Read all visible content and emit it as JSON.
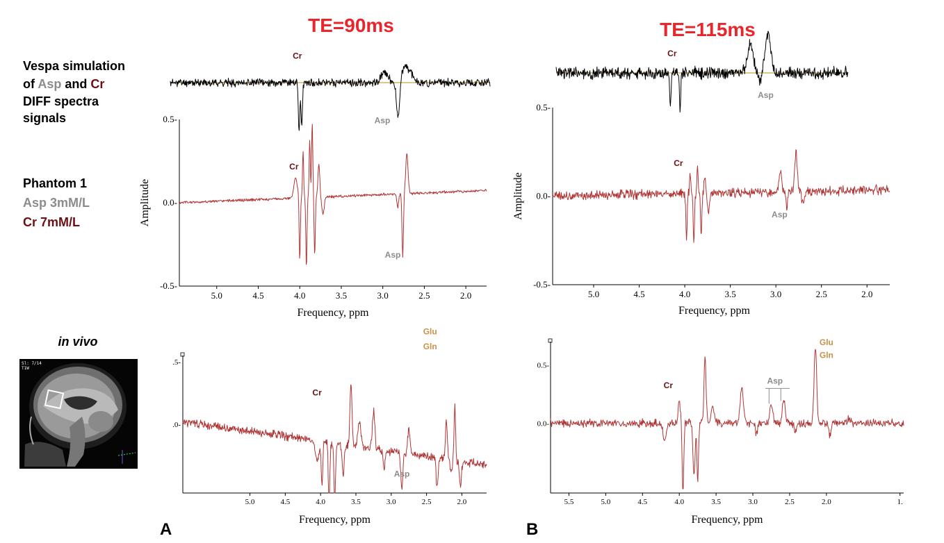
{
  "te_labels": [
    "TE=90ms",
    "TE=115ms"
  ],
  "side_labels": {
    "vespa": {
      "line1": "Vespa simulation",
      "line2_of": "of ",
      "line2_asp": "Asp",
      "line2_and": " and ",
      "line2_cr": "Cr",
      "line3": "DIFF spectra",
      "line4": "signals"
    },
    "phantom": {
      "title": "Phantom 1",
      "asp": "Asp 3mM/L",
      "cr": "Cr 7mM/L"
    },
    "in_vivo": "in vivo"
  },
  "panel_labels": [
    "A",
    "B"
  ],
  "mri": {
    "overlay_text_1": "Sl: 7/14",
    "overlay_text_2": "T1W"
  },
  "colors": {
    "title_red": "#e8262b",
    "cr_label": "#6b1014",
    "asp_label": "#8c8c8c",
    "glu_label": "#c8924a",
    "spectrum_red": "#b03535",
    "baseline": "#c8a642"
  },
  "chart_data": [
    {
      "id": "vespa-te90",
      "type": "line",
      "title": "TE=90ms",
      "description_series": "Vespa simulated DIFF spectrum (Asp and Cr)",
      "xlim": [
        5.4,
        1.75
      ],
      "ylim": [
        -1,
        1
      ],
      "baseline": 0,
      "peaks": [
        {
          "x": 3.93,
          "y": -1.0,
          "w": 0.012
        },
        {
          "x": 3.9,
          "y": -0.9,
          "w": 0.012
        },
        {
          "x": 2.8,
          "y": -0.75,
          "w": 0.025
        },
        {
          "x": 2.95,
          "y": 0.2,
          "w": 0.06
        },
        {
          "x": 2.72,
          "y": 0.35,
          "w": 0.05
        },
        {
          "x": 2.65,
          "y": 0.15,
          "w": 0.04
        }
      ],
      "noise": 0.12,
      "seed": 11,
      "annotations": [
        {
          "text": "Cr",
          "x": 3.95,
          "y": 0.5,
          "kind": "cr"
        },
        {
          "text": "Asp",
          "x": 2.98,
          "y": -0.85,
          "kind": "asp"
        }
      ]
    },
    {
      "id": "vespa-te115",
      "type": "line",
      "title": "TE=115ms",
      "description_series": "Vespa simulated DIFF spectrum (Asp and Cr)",
      "xlim": [
        5.4,
        1.75
      ],
      "ylim": [
        -1,
        1
      ],
      "baseline": 0,
      "peaks": [
        {
          "x": 3.97,
          "y": -0.8,
          "w": 0.012
        },
        {
          "x": 3.85,
          "y": -0.8,
          "w": 0.012
        },
        {
          "x": 2.97,
          "y": 0.7,
          "w": 0.05
        },
        {
          "x": 2.75,
          "y": 0.95,
          "w": 0.05
        },
        {
          "x": 2.85,
          "y": -0.3,
          "w": 0.02
        }
      ],
      "noise": 0.22,
      "seed": 23,
      "annotations": [
        {
          "text": "Cr",
          "x": 3.95,
          "y": 0.4,
          "kind": "cr"
        },
        {
          "text": "Asp",
          "x": 2.78,
          "y": -0.6,
          "kind": "asp"
        }
      ]
    },
    {
      "id": "phantom-te90",
      "type": "line",
      "title": "Phantom 1, TE=90ms",
      "xlabel": "Frequency, ppm",
      "ylabel": "Amplitude",
      "xlim": [
        5.45,
        1.75
      ],
      "ylim": [
        -0.5,
        0.5
      ],
      "xticks": [
        5.0,
        4.5,
        4.0,
        3.5,
        3.0,
        2.5,
        2.0
      ],
      "yticks": [
        0.5,
        0.0,
        -0.5
      ],
      "ytick_labels": [
        "0.5-",
        "0.0-",
        "-0.5-"
      ],
      "baseline": 0.0,
      "baseline_slope": 0.02,
      "peaks": [
        {
          "x": 4.05,
          "y": 0.12,
          "w": 0.03
        },
        {
          "x": 4.0,
          "y": -0.38,
          "w": 0.01
        },
        {
          "x": 3.96,
          "y": 0.28,
          "w": 0.01
        },
        {
          "x": 3.92,
          "y": -0.42,
          "w": 0.01
        },
        {
          "x": 3.88,
          "y": 0.35,
          "w": 0.01
        },
        {
          "x": 3.85,
          "y": 0.45,
          "w": 0.01
        },
        {
          "x": 3.82,
          "y": -0.35,
          "w": 0.01
        },
        {
          "x": 3.77,
          "y": 0.2,
          "w": 0.015
        },
        {
          "x": 3.72,
          "y": -0.1,
          "w": 0.02
        },
        {
          "x": 2.76,
          "y": -0.38,
          "w": 0.012
        },
        {
          "x": 2.71,
          "y": 0.24,
          "w": 0.02
        },
        {
          "x": 2.82,
          "y": -0.08,
          "w": 0.015
        }
      ],
      "noise": 0.012,
      "seed": 5,
      "annotations": [
        {
          "text": "Cr",
          "x": 4.07,
          "y": 0.2,
          "kind": "cr"
        },
        {
          "text": "Asp",
          "x": 2.88,
          "y": -0.33,
          "kind": "asp"
        }
      ]
    },
    {
      "id": "phantom-te115",
      "type": "line",
      "title": "Phantom 1, TE=115ms",
      "xlabel": "Frequency, ppm",
      "ylabel": "Amplitude",
      "xlim": [
        5.45,
        1.75
      ],
      "ylim": [
        -0.5,
        0.5
      ],
      "xticks": [
        5.0,
        4.5,
        4.0,
        3.5,
        3.0,
        2.5,
        2.0
      ],
      "yticks": [
        0.5,
        0.0,
        -0.5
      ],
      "ytick_labels": [
        "0.5-",
        "0.0-",
        "-0.5-"
      ],
      "baseline": 0.0,
      "baseline_slope": 0.01,
      "peaks": [
        {
          "x": 3.98,
          "y": -0.25,
          "w": 0.01
        },
        {
          "x": 3.94,
          "y": 0.12,
          "w": 0.01
        },
        {
          "x": 3.9,
          "y": -0.28,
          "w": 0.01
        },
        {
          "x": 3.86,
          "y": 0.15,
          "w": 0.01
        },
        {
          "x": 3.82,
          "y": -0.22,
          "w": 0.01
        },
        {
          "x": 3.78,
          "y": 0.1,
          "w": 0.012
        },
        {
          "x": 3.74,
          "y": -0.12,
          "w": 0.015
        },
        {
          "x": 2.95,
          "y": 0.12,
          "w": 0.02
        },
        {
          "x": 2.88,
          "y": -0.1,
          "w": 0.012
        },
        {
          "x": 2.78,
          "y": 0.22,
          "w": 0.02
        },
        {
          "x": 2.7,
          "y": -0.08,
          "w": 0.02
        }
      ],
      "noise": 0.04,
      "seed": 9,
      "annotations": [
        {
          "text": "Cr",
          "x": 4.07,
          "y": 0.17,
          "kind": "cr"
        },
        {
          "text": "Asp",
          "x": 2.96,
          "y": -0.12,
          "kind": "asp"
        }
      ]
    },
    {
      "id": "invivo-te90",
      "type": "line",
      "title": "in vivo, TE=90ms",
      "xlabel": "Frequency, ppm",
      "xlim": [
        5.95,
        1.65
      ],
      "ylim": [
        -0.55,
        0.55
      ],
      "xticks": [
        5.0,
        4.5,
        4.0,
        3.5,
        3.0,
        2.5,
        2.0
      ],
      "yticks": [
        0.5,
        0.0
      ],
      "ytick_labels": [
        ".5-",
        ".0-"
      ],
      "baseline": 0.02,
      "baseline_slope": -0.08,
      "peaks": [
        {
          "x": 4.05,
          "y": -0.15,
          "w": 0.04
        },
        {
          "x": 3.98,
          "y": -0.35,
          "w": 0.015
        },
        {
          "x": 3.88,
          "y": -0.5,
          "w": 0.015
        },
        {
          "x": 3.8,
          "y": -0.55,
          "w": 0.015
        },
        {
          "x": 3.68,
          "y": -0.25,
          "w": 0.02
        },
        {
          "x": 3.57,
          "y": 0.5,
          "w": 0.02
        },
        {
          "x": 3.45,
          "y": 0.2,
          "w": 0.03
        },
        {
          "x": 3.25,
          "y": 0.3,
          "w": 0.025
        },
        {
          "x": 3.1,
          "y": -0.15,
          "w": 0.02
        },
        {
          "x": 2.85,
          "y": -0.3,
          "w": 0.02
        },
        {
          "x": 2.75,
          "y": 0.2,
          "w": 0.025
        },
        {
          "x": 2.35,
          "y": -0.25,
          "w": 0.02
        },
        {
          "x": 2.22,
          "y": 0.3,
          "w": 0.02
        },
        {
          "x": 2.15,
          "y": -0.1,
          "w": 0.02
        },
        {
          "x": 2.1,
          "y": 0.45,
          "w": 0.015
        },
        {
          "x": 2.02,
          "y": -0.2,
          "w": 0.02
        }
      ],
      "noise": 0.05,
      "seed": 31,
      "annotations": [
        {
          "text": "Cr",
          "x": 4.05,
          "y": 0.23,
          "kind": "cr"
        },
        {
          "text": "Asp",
          "x": 2.85,
          "y": -0.42,
          "kind": "asp"
        },
        {
          "text": "Glu",
          "x": 2.45,
          "y": 0.72,
          "kind": "glu"
        },
        {
          "text": "Gln",
          "x": 2.45,
          "y": 0.6,
          "kind": "glu"
        }
      ]
    },
    {
      "id": "invivo-te115",
      "type": "line",
      "title": "in vivo, TE=115ms",
      "xlabel": "Frequency, ppm",
      "xlim": [
        5.75,
        0.95
      ],
      "ylim": [
        -0.6,
        0.7
      ],
      "xticks": [
        5.5,
        5.0,
        4.5,
        4.0,
        3.5,
        3.0,
        2.5,
        2.0,
        1.0
      ],
      "xtick_labels": [
        "5.5",
        "5.0",
        "4.5",
        "4.0",
        "3.5",
        "3.0",
        "2.5",
        "2.0",
        "1."
      ],
      "yticks": [
        0.5,
        0.0
      ],
      "ytick_labels": [
        "0.5-",
        "0.0-"
      ],
      "baseline": 0.0,
      "baseline_slope": 0.0,
      "peaks": [
        {
          "x": 4.2,
          "y": -0.15,
          "w": 0.03
        },
        {
          "x": 4.0,
          "y": 0.2,
          "w": 0.02
        },
        {
          "x": 3.95,
          "y": -0.6,
          "w": 0.015
        },
        {
          "x": 3.8,
          "y": -0.45,
          "w": 0.02
        },
        {
          "x": 3.75,
          "y": -0.5,
          "w": 0.015
        },
        {
          "x": 3.65,
          "y": 0.58,
          "w": 0.02
        },
        {
          "x": 3.55,
          "y": 0.15,
          "w": 0.03
        },
        {
          "x": 3.15,
          "y": 0.3,
          "w": 0.03
        },
        {
          "x": 2.95,
          "y": -0.1,
          "w": 0.02
        },
        {
          "x": 2.75,
          "y": 0.16,
          "w": 0.03
        },
        {
          "x": 2.58,
          "y": 0.2,
          "w": 0.03
        },
        {
          "x": 2.42,
          "y": -0.08,
          "w": 0.02
        },
        {
          "x": 2.15,
          "y": 0.65,
          "w": 0.025
        },
        {
          "x": 1.95,
          "y": -0.12,
          "w": 0.02
        },
        {
          "x": 1.7,
          "y": 0.05,
          "w": 0.03
        }
      ],
      "noise": 0.05,
      "seed": 47,
      "annotations": [
        {
          "text": "Cr",
          "x": 4.15,
          "y": 0.3,
          "kind": "cr"
        },
        {
          "text": "Asp",
          "x": 2.7,
          "y": 0.34,
          "kind": "asp"
        },
        {
          "text": "Glu",
          "x": 2.0,
          "y": 0.67,
          "kind": "glu"
        },
        {
          "text": "Gln",
          "x": 2.0,
          "y": 0.56,
          "kind": "glu"
        }
      ]
    }
  ]
}
